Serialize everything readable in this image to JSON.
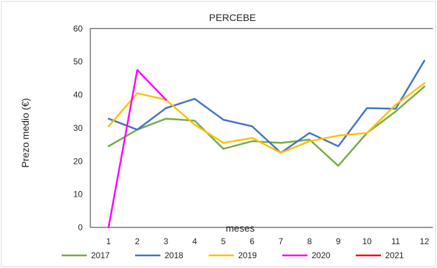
{
  "chart_data": {
    "type": "line",
    "title": "PERCEBE",
    "xlabel": "meses",
    "ylabel": "Prezo medio (€)",
    "x": [
      "1",
      "2",
      "3",
      "4",
      "5",
      "6",
      "7",
      "8",
      "9",
      "10",
      "11",
      "12"
    ],
    "ylim": [
      0,
      60
    ],
    "yticks": [
      "0",
      "10",
      "20",
      "30",
      "40",
      "50",
      "60"
    ],
    "grid": false,
    "legend_position": "bottom",
    "series": [
      {
        "name": "2017",
        "color": "#70ad47",
        "values": [
          24.5,
          29.5,
          32.8,
          32.2,
          23.7,
          26.0,
          25.5,
          26.5,
          18.6,
          28.5,
          35.0,
          42.5
        ]
      },
      {
        "name": "2018",
        "color": "#4472c4",
        "values": [
          32.8,
          29.5,
          36.0,
          38.8,
          32.5,
          30.5,
          22.5,
          28.5,
          24.5,
          36.0,
          35.8,
          50.3
        ]
      },
      {
        "name": "2019",
        "color": "#ffc000",
        "values": [
          30.5,
          40.5,
          38.5,
          31.0,
          25.5,
          27.0,
          22.5,
          26.0,
          27.7,
          28.5,
          37.0,
          43.5
        ]
      },
      {
        "name": "2020",
        "color": "#ff00ff",
        "values": [
          0,
          47.5,
          38.5,
          null,
          null,
          null,
          null,
          null,
          null,
          null,
          null,
          null
        ]
      },
      {
        "name": "2021",
        "color": "#ff0000",
        "values": [
          null,
          null,
          null,
          null,
          null,
          null,
          null,
          null,
          null,
          null,
          null,
          null
        ]
      }
    ]
  }
}
